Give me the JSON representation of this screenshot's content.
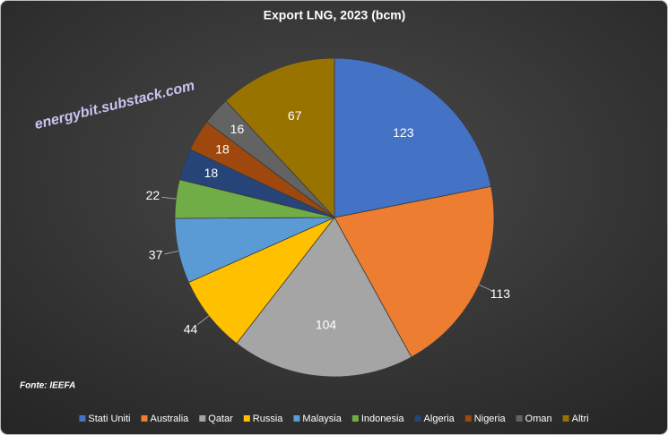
{
  "chart_data": {
    "type": "pie",
    "title": "Export LNG, 2023 (bcm)",
    "watermark": "energybit.substack.com",
    "source": "Fonte: IEEFA",
    "categories": [
      "Stati Uniti",
      "Australia",
      "Qatar",
      "Russia",
      "Malaysia",
      "Indonesia",
      "Algeria",
      "Nigeria",
      "Oman",
      "Altri"
    ],
    "values": [
      123,
      113,
      104,
      44,
      37,
      22,
      18,
      18,
      16,
      67
    ],
    "colors": [
      "#4472c4",
      "#ed7d31",
      "#a5a5a5",
      "#ffc000",
      "#5b9bd5",
      "#70ad47",
      "#264478",
      "#9e480e",
      "#636363",
      "#997300"
    ],
    "legend": "bottom"
  }
}
